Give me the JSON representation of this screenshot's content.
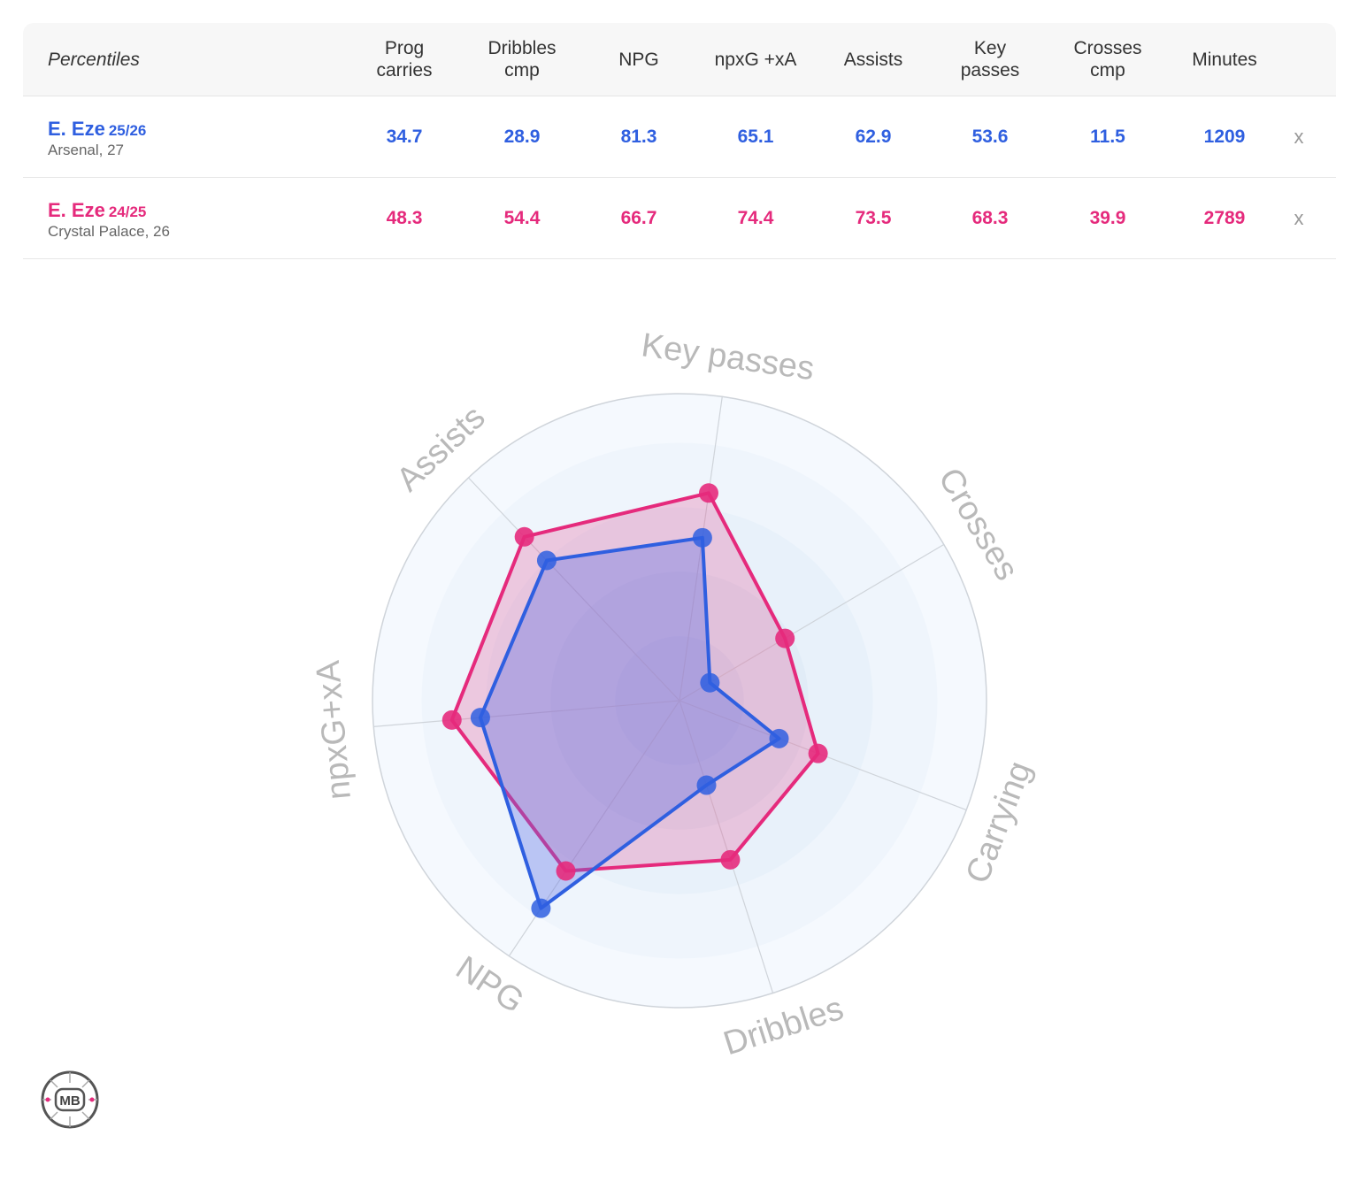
{
  "table": {
    "header_first": "Percentiles",
    "columns": [
      "Prog\ncarries",
      "Dribbles\ncmp",
      "NPG",
      "npxG +xA",
      "Assists",
      "Key\npasses",
      "Crosses\ncmp",
      "Minutes"
    ],
    "remove_label": "x",
    "rows": [
      {
        "name": "E. Eze",
        "season": "25/26",
        "club": "Arsenal, 27",
        "color": "#2f5fe0",
        "values": [
          "34.7",
          "28.9",
          "81.3",
          "65.1",
          "62.9",
          "53.6",
          "11.5",
          "1209"
        ]
      },
      {
        "name": "E. Eze",
        "season": "24/25",
        "club": "Crystal Palace, 26",
        "color": "#e52a7c",
        "values": [
          "48.3",
          "54.4",
          "66.7",
          "74.4",
          "73.5",
          "68.3",
          "39.9",
          "2789"
        ]
      }
    ]
  },
  "chart_data": {
    "type": "radar",
    "axes": [
      "Key passes",
      "Crosses",
      "Carrying",
      "Dribbles",
      "NPG",
      "npxG+xA",
      "Assists"
    ],
    "range": [
      0,
      100
    ],
    "series": [
      {
        "name": "E. Eze 25/26",
        "color": "#2f5fe0",
        "values": [
          53.6,
          11.5,
          34.7,
          28.9,
          81.3,
          65.1,
          62.9
        ]
      },
      {
        "name": "E. Eze 24/25",
        "color": "#e52a7c",
        "values": [
          68.3,
          39.9,
          48.3,
          54.4,
          66.7,
          74.4,
          73.5
        ]
      }
    ]
  },
  "logo": {
    "text": "MB"
  }
}
